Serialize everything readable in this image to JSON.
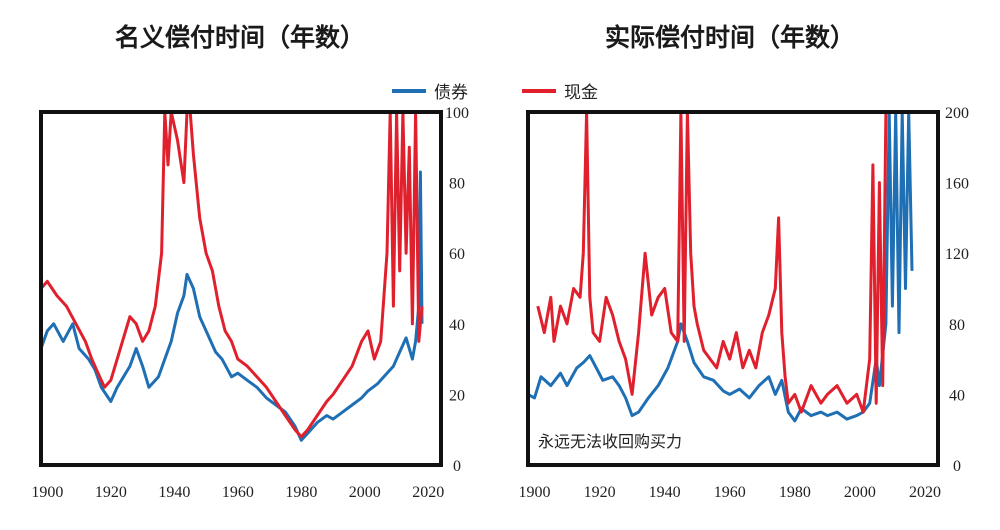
{
  "titles": {
    "left": "名义偿付时间（年数）",
    "right": "实际偿付时间（年数）"
  },
  "legend": [
    {
      "label": "债券",
      "color": "#1f6fb5"
    },
    {
      "label": "现金",
      "color": "#e0202d"
    }
  ],
  "chart_data": [
    {
      "type": "line",
      "title": "名义偿付时间（年数）",
      "xlabel": "",
      "ylabel": "",
      "xlim": [
        1898,
        2024
      ],
      "ylim": [
        0,
        100
      ],
      "x_ticks": [
        1900,
        1920,
        1940,
        1960,
        1980,
        2000,
        2020
      ],
      "y_ticks": [
        0,
        20,
        40,
        60,
        80,
        100
      ],
      "y_axis_side": "right",
      "grid": false,
      "series": [
        {
          "name": "债券",
          "color": "#1f6fb5",
          "x": [
            1898,
            1900,
            1902,
            1905,
            1908,
            1910,
            1913,
            1915,
            1917,
            1920,
            1922,
            1924,
            1926,
            1928,
            1930,
            1932,
            1935,
            1937,
            1939,
            1941,
            1943,
            1944,
            1946,
            1948,
            1950,
            1953,
            1955,
            1958,
            1960,
            1963,
            1966,
            1969,
            1972,
            1975,
            1978,
            1980,
            1982,
            1985,
            1988,
            1990,
            1993,
            1996,
            1999,
            2001,
            2004,
            2007,
            2009,
            2011,
            2013,
            2015,
            2016,
            2017,
            2017.5,
            2018
          ],
          "y": [
            33,
            38,
            40,
            35,
            40,
            33,
            30,
            27,
            22,
            18,
            22,
            25,
            28,
            33,
            28,
            22,
            25,
            30,
            35,
            43,
            48,
            54,
            50,
            42,
            38,
            32,
            30,
            25,
            26,
            24,
            22,
            19,
            17,
            15,
            11,
            7,
            9,
            12,
            14,
            13,
            15,
            17,
            19,
            21,
            23,
            26,
            28,
            32,
            36,
            30,
            35,
            45,
            83,
            40
          ]
        },
        {
          "name": "现金",
          "color": "#e0202d",
          "x": [
            1898,
            1900,
            1903,
            1906,
            1909,
            1912,
            1914,
            1916,
            1918,
            1920,
            1922,
            1924,
            1926,
            1928,
            1930,
            1932,
            1934,
            1936,
            1937,
            1938,
            1939,
            1941,
            1943,
            1944,
            1945,
            1946,
            1948,
            1950,
            1952,
            1954,
            1956,
            1958,
            1960,
            1963,
            1966,
            1969,
            1972,
            1975,
            1978,
            1980,
            1982,
            1985,
            1988,
            1990,
            1993,
            1996,
            1999,
            2001,
            2003,
            2005,
            2007,
            2008,
            2009,
            2010,
            2011,
            2012,
            2013,
            2014,
            2015,
            2016,
            2017,
            2018
          ],
          "y": [
            50,
            52,
            48,
            45,
            40,
            35,
            30,
            26,
            22,
            24,
            30,
            36,
            42,
            40,
            35,
            38,
            45,
            60,
            100,
            85,
            100,
            92,
            80,
            100,
            100,
            88,
            70,
            60,
            55,
            45,
            38,
            35,
            30,
            28,
            25,
            22,
            18,
            14,
            10,
            8,
            10,
            14,
            18,
            20,
            24,
            28,
            35,
            38,
            30,
            35,
            60,
            100,
            45,
            100,
            55,
            100,
            60,
            90,
            40,
            100,
            35,
            45
          ]
        }
      ]
    },
    {
      "type": "line",
      "title": "实际偿付时间（年数）",
      "xlabel": "",
      "ylabel": "",
      "xlim": [
        1898,
        2024
      ],
      "ylim": [
        0,
        200
      ],
      "x_ticks": [
        1900,
        1920,
        1940,
        1960,
        1980,
        2000,
        2020
      ],
      "y_ticks": [
        0,
        40,
        80,
        120,
        160,
        200
      ],
      "y_axis_side": "right",
      "grid": false,
      "annotation": "永远无法收回购买力",
      "series": [
        {
          "name": "债券",
          "color": "#1f6fb5",
          "x": [
            1898,
            1900,
            1902,
            1905,
            1908,
            1910,
            1913,
            1915,
            1917,
            1919,
            1921,
            1924,
            1926,
            1928,
            1930,
            1932,
            1935,
            1938,
            1941,
            1944,
            1945,
            1947,
            1949,
            1952,
            1955,
            1958,
            1960,
            1963,
            1966,
            1969,
            1972,
            1974,
            1976,
            1978,
            1980,
            1982,
            1985,
            1988,
            1990,
            1993,
            1996,
            1999,
            2001,
            2003,
            2005,
            2006,
            2008,
            2009,
            2010,
            2011,
            2012,
            2013,
            2014,
            2015,
            2016
          ],
          "y": [
            40,
            38,
            50,
            45,
            52,
            45,
            55,
            58,
            62,
            55,
            48,
            50,
            45,
            38,
            28,
            30,
            38,
            45,
            55,
            70,
            80,
            70,
            58,
            50,
            48,
            42,
            40,
            43,
            38,
            45,
            50,
            40,
            48,
            30,
            25,
            32,
            28,
            30,
            28,
            30,
            26,
            28,
            30,
            35,
            60,
            45,
            80,
            200,
            90,
            200,
            75,
            200,
            100,
            200,
            110
          ]
        },
        {
          "name": "现金",
          "color": "#e0202d",
          "x": [
            1901,
            1903,
            1905,
            1906,
            1908,
            1910,
            1912,
            1914,
            1915,
            1916,
            1917,
            1918,
            1920,
            1922,
            1924,
            1926,
            1928,
            1930,
            1932,
            1934,
            1936,
            1938,
            1940,
            1942,
            1944,
            1945,
            1946,
            1947,
            1948,
            1949,
            1950,
            1952,
            1954,
            1956,
            1958,
            1960,
            1962,
            1964,
            1966,
            1968,
            1970,
            1972,
            1974,
            1975,
            1976,
            1977,
            1978,
            1980,
            1982,
            1985,
            1988,
            1990,
            1993,
            1996,
            1999,
            2001,
            2003,
            2004,
            2005,
            2006,
            2007,
            2008,
            2009
          ],
          "y": [
            90,
            75,
            95,
            70,
            90,
            80,
            100,
            95,
            120,
            200,
            95,
            75,
            70,
            95,
            85,
            70,
            60,
            40,
            75,
            120,
            85,
            95,
            100,
            75,
            70,
            200,
            70,
            200,
            120,
            90,
            80,
            65,
            60,
            55,
            70,
            60,
            75,
            55,
            65,
            55,
            75,
            85,
            100,
            140,
            75,
            50,
            35,
            40,
            30,
            45,
            35,
            40,
            45,
            35,
            40,
            30,
            60,
            170,
            35,
            160,
            45,
            200,
            200
          ]
        }
      ]
    }
  ]
}
